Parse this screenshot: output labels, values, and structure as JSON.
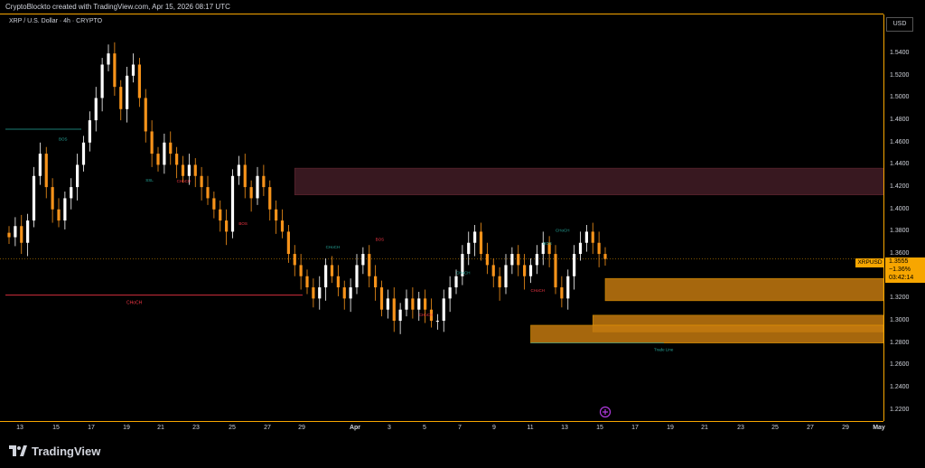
{
  "header": {
    "title": "CryptoBlockto created with TradingView.com, Apr 15, 2026 08:17 UTC"
  },
  "symbol": {
    "label": "XRP / U.S. Dollar · 4h · CRYPTO"
  },
  "price_scale": {
    "currency": "USD",
    "ticks": [
      "1.5400",
      "1.5200",
      "1.5000",
      "1.4800",
      "1.4600",
      "1.4400",
      "1.4200",
      "1.4000",
      "1.3800",
      "1.3600",
      "1.3400",
      "1.3200",
      "1.3000",
      "1.2800",
      "1.2600",
      "1.2400",
      "1.2200"
    ]
  },
  "current": {
    "ticker": "XRPUSD",
    "price": "1.3555",
    "change": "−1.36%",
    "countdown": "03:42:14"
  },
  "x_axis": {
    "labels": [
      "13",
      "15",
      "17",
      "19",
      "21",
      "23",
      "25",
      "27",
      "29",
      "Apr",
      "3",
      "5",
      "7",
      "9",
      "11",
      "13",
      "15",
      "17",
      "19",
      "21",
      "23",
      "25",
      "27",
      "29",
      "May"
    ]
  },
  "annotations": {
    "bos": "BOS",
    "choch": "CHoCH",
    "sweep": "SSL",
    "trend_label": "Trade Line"
  },
  "footer": {
    "brand": "TradingView"
  },
  "icons": {
    "logo": "tradingview-logo-icon",
    "cursor": "replay-cursor-icon"
  },
  "colors": {
    "up": "#ffffff",
    "down": "#f7931a",
    "supply_zone": "#3c1a22",
    "demand_zone": "#c47a10",
    "accent": "#f7a600"
  },
  "chart_data": {
    "type": "candlestick",
    "timeframe": "4h",
    "ylim": [
      1.21,
      1.575
    ],
    "ytick_values": [
      1.54,
      1.52,
      1.5,
      1.48,
      1.46,
      1.44,
      1.42,
      1.4,
      1.38,
      1.36,
      1.34,
      1.32,
      1.3,
      1.28,
      1.26,
      1.24,
      1.22
    ],
    "x_tick_labels": [
      "13",
      "15",
      "17",
      "19",
      "21",
      "23",
      "25",
      "27",
      "29",
      "Apr",
      "3",
      "5",
      "7",
      "9",
      "11",
      "13",
      "15",
      "17",
      "19",
      "21",
      "23",
      "25",
      "27",
      "29",
      "May"
    ],
    "closes": [
      1.375,
      1.385,
      1.37,
      1.39,
      1.43,
      1.45,
      1.42,
      1.4,
      1.39,
      1.41,
      1.42,
      1.44,
      1.46,
      1.48,
      1.5,
      1.53,
      1.54,
      1.51,
      1.49,
      1.52,
      1.53,
      1.5,
      1.47,
      1.45,
      1.44,
      1.46,
      1.45,
      1.44,
      1.43,
      1.44,
      1.43,
      1.42,
      1.41,
      1.4,
      1.39,
      1.38,
      1.43,
      1.44,
      1.42,
      1.41,
      1.43,
      1.42,
      1.4,
      1.39,
      1.38,
      1.36,
      1.35,
      1.34,
      1.33,
      1.32,
      1.33,
      1.35,
      1.34,
      1.33,
      1.32,
      1.33,
      1.35,
      1.36,
      1.34,
      1.33,
      1.31,
      1.32,
      1.3,
      1.31,
      1.32,
      1.31,
      1.32,
      1.31,
      1.3,
      1.3,
      1.32,
      1.33,
      1.34,
      1.36,
      1.37,
      1.38,
      1.36,
      1.35,
      1.34,
      1.33,
      1.35,
      1.36,
      1.35,
      1.34,
      1.35,
      1.36,
      1.37,
      1.36,
      1.33,
      1.32,
      1.34,
      1.36,
      1.37,
      1.38,
      1.37,
      1.36,
      1.3555
    ],
    "zones": [
      {
        "kind": "supply",
        "from_index": 46,
        "low": 1.413,
        "high": 1.437
      },
      {
        "kind": "demand",
        "from_index": 120,
        "low": 1.318,
        "high": 1.338
      },
      {
        "kind": "demand",
        "from_index": 94,
        "low": 1.29,
        "high": 1.305
      },
      {
        "kind": "demand",
        "from_index": 84,
        "low": 1.28,
        "high": 1.296
      }
    ],
    "levels": [
      {
        "label": "CHoCH",
        "price": 1.323,
        "color": "#f23645"
      },
      {
        "label": "",
        "price": 1.472,
        "color": "#26a69a"
      }
    ]
  }
}
